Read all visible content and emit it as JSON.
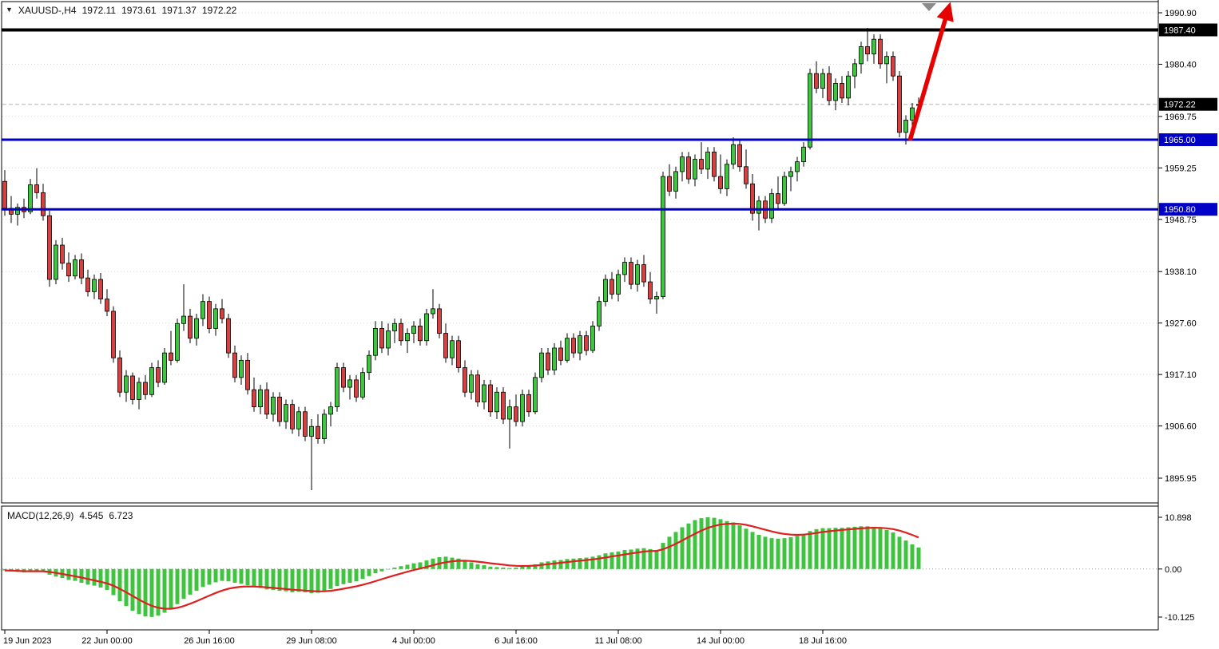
{
  "header": {
    "collapse_icon": "▼",
    "symbol_period": "XAUUSD-,H4",
    "open": "1972.11",
    "high": "1973.61",
    "low": "1971.37",
    "close": "1972.22"
  },
  "macd_panel": {
    "title": "MACD(12,26,9)",
    "value_main": "4.545",
    "value_signal": "6.723"
  },
  "price_axis": {
    "ticks": [
      {
        "label": "1990.90",
        "price": 1990.9
      },
      {
        "label": "1980.40",
        "price": 1980.4
      },
      {
        "label": "1969.75",
        "price": 1969.75
      },
      {
        "label": "1959.25",
        "price": 1959.25
      },
      {
        "label": "1948.75",
        "price": 1948.75
      },
      {
        "label": "1938.10",
        "price": 1938.1
      },
      {
        "label": "1927.60",
        "price": 1927.6
      },
      {
        "label": "1917.10",
        "price": 1917.1
      },
      {
        "label": "1906.60",
        "price": 1906.6
      },
      {
        "label": "1895.95",
        "price": 1895.95
      }
    ],
    "badges": [
      {
        "label": "1987.40",
        "price": 1987.4,
        "bg": "#000000"
      },
      {
        "label": "1972.22",
        "price": 1972.22,
        "bg": "#000000"
      },
      {
        "label": "1965.00",
        "price": 1965.0,
        "bg": "#0000C8"
      },
      {
        "label": "1950.80",
        "price": 1950.8,
        "bg": "#0000C8"
      }
    ]
  },
  "macd_axis": {
    "ticks": [
      {
        "label": "10.898",
        "value": 10.898
      },
      {
        "label": "0.00",
        "value": 0
      },
      {
        "label": "-10.125",
        "value": -10.125
      }
    ]
  },
  "time_axis": {
    "ticks": [
      {
        "label": "19 Jun 2023",
        "index": 0
      },
      {
        "label": "22 Jun 00:00",
        "index": 16
      },
      {
        "label": "26 Jun 16:00",
        "index": 32
      },
      {
        "label": "29 Jun 08:00",
        "index": 48
      },
      {
        "label": "4 Jul 00:00",
        "index": 64
      },
      {
        "label": "6 Jul 16:00",
        "index": 80
      },
      {
        "label": "11 Jul 08:00",
        "index": 96
      },
      {
        "label": "14 Jul 00:00",
        "index": 112
      },
      {
        "label": "18 Jul 16:00",
        "index": 128
      }
    ]
  },
  "colors": {
    "bull": "#3fc43f",
    "bear": "#d54040",
    "wick": "#000000",
    "grid": "#d8d8d8",
    "current_price_line": "#b5b5b5",
    "level_blue": "#0000C8",
    "level_black": "#000000",
    "histogram": "#3fc43f",
    "signal": "#e02020",
    "arrow": "#e60000",
    "shift_marker": "#8a8a8a"
  },
  "chart_data": {
    "type": "candlestick",
    "symbol": "XAUUSD-",
    "timeframe": "H4",
    "title": "XAUUSD- H4 with MACD(12,26,9), horizontal levels 1987.40 / 1965.00 / 1950.80 and bullish arrow annotation",
    "current_bar_ohlc": {
      "open": 1972.11,
      "high": 1973.61,
      "low": 1971.37,
      "close": 1972.22
    },
    "current_price": 1972.22,
    "price_axis_range": [
      1895.95,
      1990.9
    ],
    "levels": [
      {
        "name": "resistance-line-1987",
        "price": 1987.4,
        "color": "#000000",
        "width": 4
      },
      {
        "name": "support-line-1965",
        "price": 1965.0,
        "color": "#0000C8",
        "width": 3
      },
      {
        "name": "support-line-1950",
        "price": 1950.8,
        "color": "#0000C8",
        "width": 3
      }
    ],
    "candles": [
      [
        1956.5,
        1958.8,
        1949.5,
        1951.0
      ],
      [
        1951.0,
        1953.5,
        1948.0,
        1949.8
      ],
      [
        1949.8,
        1952.0,
        1947.5,
        1951.2
      ],
      [
        1951.2,
        1953.0,
        1949.0,
        1950.3
      ],
      [
        1950.3,
        1957.0,
        1949.8,
        1955.8
      ],
      [
        1955.8,
        1959.2,
        1953.0,
        1954.2
      ],
      [
        1954.2,
        1956.0,
        1948.5,
        1949.5
      ],
      [
        1949.5,
        1950.5,
        1935.0,
        1936.5
      ],
      [
        1936.5,
        1944.5,
        1935.5,
        1943.5
      ],
      [
        1943.5,
        1945.0,
        1938.5,
        1939.8
      ],
      [
        1939.8,
        1942.0,
        1936.0,
        1937.2
      ],
      [
        1937.2,
        1941.5,
        1936.5,
        1940.5
      ],
      [
        1940.5,
        1941.8,
        1935.5,
        1936.8
      ],
      [
        1936.8,
        1938.5,
        1933.0,
        1934.0
      ],
      [
        1934.0,
        1937.5,
        1932.5,
        1936.5
      ],
      [
        1936.5,
        1937.8,
        1931.5,
        1932.5
      ],
      [
        1932.5,
        1934.5,
        1929.0,
        1930.0
      ],
      [
        1930.0,
        1931.0,
        1919.5,
        1920.5
      ],
      [
        1920.5,
        1922.0,
        1912.5,
        1913.5
      ],
      [
        1913.5,
        1918.0,
        1911.5,
        1916.8
      ],
      [
        1916.8,
        1917.5,
        1911.0,
        1912.0
      ],
      [
        1912.0,
        1916.5,
        1910.0,
        1915.5
      ],
      [
        1915.5,
        1917.0,
        1912.0,
        1913.0
      ],
      [
        1913.0,
        1919.5,
        1912.5,
        1918.5
      ],
      [
        1918.5,
        1920.0,
        1914.5,
        1915.5
      ],
      [
        1915.5,
        1922.5,
        1915.0,
        1921.5
      ],
      [
        1921.5,
        1926.0,
        1919.0,
        1920.0
      ],
      [
        1920.0,
        1928.5,
        1919.5,
        1927.5
      ],
      [
        1927.5,
        1935.5,
        1926.0,
        1929.0
      ],
      [
        1929.0,
        1930.5,
        1923.5,
        1924.5
      ],
      [
        1924.5,
        1929.5,
        1923.0,
        1928.5
      ],
      [
        1928.5,
        1933.5,
        1927.0,
        1932.0
      ],
      [
        1932.0,
        1933.0,
        1925.5,
        1926.5
      ],
      [
        1926.5,
        1931.5,
        1925.0,
        1930.5
      ],
      [
        1930.5,
        1932.5,
        1927.5,
        1928.5
      ],
      [
        1928.5,
        1929.5,
        1920.5,
        1921.5
      ],
      [
        1921.5,
        1923.0,
        1915.5,
        1916.5
      ],
      [
        1916.5,
        1921.0,
        1915.0,
        1920.0
      ],
      [
        1920.0,
        1921.5,
        1913.0,
        1914.0
      ],
      [
        1914.0,
        1916.5,
        1909.5,
        1910.5
      ],
      [
        1910.5,
        1915.0,
        1909.0,
        1914.0
      ],
      [
        1914.0,
        1915.5,
        1908.0,
        1909.0
      ],
      [
        1909.0,
        1913.5,
        1907.5,
        1912.5
      ],
      [
        1912.5,
        1913.5,
        1906.5,
        1907.5
      ],
      [
        1907.5,
        1912.0,
        1906.0,
        1911.0
      ],
      [
        1911.0,
        1912.0,
        1905.0,
        1906.0
      ],
      [
        1906.0,
        1910.5,
        1904.5,
        1909.5
      ],
      [
        1909.5,
        1910.5,
        1903.5,
        1904.5
      ],
      [
        1904.5,
        1908.0,
        1893.5,
        1906.5
      ],
      [
        1906.5,
        1909.0,
        1903.0,
        1904.0
      ],
      [
        1904.0,
        1910.0,
        1903.0,
        1909.0
      ],
      [
        1909.0,
        1911.5,
        1906.5,
        1910.5
      ],
      [
        1910.5,
        1919.5,
        1909.5,
        1918.5
      ],
      [
        1918.5,
        1919.5,
        1913.5,
        1914.5
      ],
      [
        1914.5,
        1917.0,
        1912.0,
        1916.0
      ],
      [
        1916.0,
        1917.0,
        1911.5,
        1912.5
      ],
      [
        1912.5,
        1918.5,
        1912.0,
        1917.5
      ],
      [
        1917.5,
        1922.0,
        1916.0,
        1921.0
      ],
      [
        1921.0,
        1928.0,
        1920.0,
        1926.5
      ],
      [
        1926.5,
        1928.0,
        1921.5,
        1922.5
      ],
      [
        1922.5,
        1927.5,
        1921.0,
        1926.0
      ],
      [
        1926.0,
        1928.5,
        1923.5,
        1927.5
      ],
      [
        1927.5,
        1928.5,
        1923.0,
        1924.0
      ],
      [
        1924.0,
        1926.5,
        1921.5,
        1925.5
      ],
      [
        1925.5,
        1928.0,
        1923.5,
        1927.0
      ],
      [
        1927.0,
        1928.5,
        1923.0,
        1924.0
      ],
      [
        1924.0,
        1930.5,
        1923.0,
        1929.5
      ],
      [
        1929.5,
        1934.5,
        1928.5,
        1930.5
      ],
      [
        1930.5,
        1931.5,
        1924.5,
        1925.5
      ],
      [
        1925.5,
        1927.5,
        1919.5,
        1920.5
      ],
      [
        1920.5,
        1925.0,
        1919.0,
        1924.0
      ],
      [
        1924.0,
        1925.0,
        1917.5,
        1918.5
      ],
      [
        1918.5,
        1920.0,
        1912.5,
        1913.5
      ],
      [
        1913.5,
        1918.0,
        1912.0,
        1917.0
      ],
      [
        1917.0,
        1918.0,
        1910.5,
        1911.5
      ],
      [
        1911.5,
        1916.0,
        1910.0,
        1915.0
      ],
      [
        1915.0,
        1916.0,
        1908.5,
        1909.5
      ],
      [
        1909.5,
        1914.5,
        1908.0,
        1913.5
      ],
      [
        1913.5,
        1914.5,
        1907.0,
        1908.0
      ],
      [
        1908.0,
        1912.0,
        1902.0,
        1910.5
      ],
      [
        1910.5,
        1913.0,
        1906.5,
        1907.5
      ],
      [
        1907.5,
        1914.0,
        1906.5,
        1913.0
      ],
      [
        1913.0,
        1914.0,
        1908.5,
        1909.5
      ],
      [
        1909.5,
        1917.5,
        1909.0,
        1916.5
      ],
      [
        1916.5,
        1922.5,
        1915.5,
        1921.5
      ],
      [
        1921.5,
        1922.5,
        1917.0,
        1918.0
      ],
      [
        1918.0,
        1923.5,
        1917.0,
        1922.5
      ],
      [
        1922.5,
        1924.0,
        1919.0,
        1920.0
      ],
      [
        1920.0,
        1925.5,
        1919.5,
        1924.5
      ],
      [
        1924.5,
        1925.5,
        1920.5,
        1921.5
      ],
      [
        1921.5,
        1926.0,
        1920.0,
        1925.0
      ],
      [
        1925.0,
        1926.0,
        1921.0,
        1922.0
      ],
      [
        1922.0,
        1928.0,
        1921.5,
        1927.0
      ],
      [
        1927.0,
        1933.0,
        1926.0,
        1932.0
      ],
      [
        1932.0,
        1937.5,
        1931.0,
        1936.5
      ],
      [
        1936.5,
        1938.0,
        1932.5,
        1933.5
      ],
      [
        1933.5,
        1938.5,
        1932.0,
        1937.5
      ],
      [
        1937.5,
        1941.0,
        1936.0,
        1940.0
      ],
      [
        1940.0,
        1941.0,
        1934.5,
        1935.5
      ],
      [
        1935.5,
        1940.5,
        1934.0,
        1939.5
      ],
      [
        1939.5,
        1941.5,
        1935.0,
        1936.0
      ],
      [
        1936.0,
        1938.0,
        1931.5,
        1932.5
      ],
      [
        1932.5,
        1934.0,
        1929.5,
        1933.0
      ],
      [
        1933.0,
        1958.5,
        1932.5,
        1957.5
      ],
      [
        1957.5,
        1960.0,
        1953.5,
        1954.5
      ],
      [
        1954.5,
        1959.5,
        1953.0,
        1958.5
      ],
      [
        1958.5,
        1962.5,
        1956.5,
        1961.5
      ],
      [
        1961.5,
        1962.5,
        1956.0,
        1957.0
      ],
      [
        1957.0,
        1962.0,
        1955.5,
        1961.0
      ],
      [
        1961.0,
        1964.5,
        1958.0,
        1959.0
      ],
      [
        1959.0,
        1963.5,
        1957.0,
        1962.5
      ],
      [
        1962.5,
        1963.5,
        1956.5,
        1957.5
      ],
      [
        1957.5,
        1962.0,
        1954.0,
        1955.0
      ],
      [
        1955.0,
        1961.0,
        1953.5,
        1960.0
      ],
      [
        1960.0,
        1965.5,
        1959.0,
        1964.0
      ],
      [
        1964.0,
        1965.0,
        1958.5,
        1959.5
      ],
      [
        1959.5,
        1963.0,
        1955.0,
        1956.0
      ],
      [
        1956.0,
        1958.0,
        1948.5,
        1950.0
      ],
      [
        1950.0,
        1953.5,
        1946.5,
        1952.5
      ],
      [
        1952.5,
        1953.5,
        1948.0,
        1949.0
      ],
      [
        1949.0,
        1955.0,
        1948.0,
        1954.0
      ],
      [
        1954.0,
        1957.5,
        1951.0,
        1952.0
      ],
      [
        1952.0,
        1958.5,
        1951.5,
        1957.5
      ],
      [
        1957.5,
        1959.5,
        1954.5,
        1958.5
      ],
      [
        1958.5,
        1961.5,
        1956.5,
        1960.5
      ],
      [
        1960.5,
        1964.5,
        1959.5,
        1963.5
      ],
      [
        1963.5,
        1979.5,
        1963.0,
        1978.5
      ],
      [
        1978.5,
        1981.0,
        1974.5,
        1975.5
      ],
      [
        1975.5,
        1979.5,
        1973.5,
        1978.5
      ],
      [
        1978.5,
        1980.0,
        1972.0,
        1973.0
      ],
      [
        1973.0,
        1977.5,
        1971.0,
        1976.5
      ],
      [
        1976.5,
        1978.0,
        1972.5,
        1973.5
      ],
      [
        1973.5,
        1979.0,
        1972.0,
        1978.0
      ],
      [
        1978.0,
        1981.5,
        1975.5,
        1980.5
      ],
      [
        1980.5,
        1985.0,
        1978.5,
        1984.0
      ],
      [
        1984.0,
        1987.8,
        1981.0,
        1982.5
      ],
      [
        1982.5,
        1986.5,
        1980.5,
        1985.5
      ],
      [
        1985.5,
        1986.5,
        1979.5,
        1980.5
      ],
      [
        1980.5,
        1983.0,
        1976.5,
        1982.0
      ],
      [
        1982.0,
        1983.0,
        1977.0,
        1978.0
      ],
      [
        1978.0,
        1979.0,
        1965.5,
        1966.5
      ],
      [
        1966.5,
        1970.0,
        1964.0,
        1969.0
      ],
      [
        1969.0,
        1972.5,
        1967.0,
        1971.5
      ],
      [
        1972.11,
        1973.61,
        1971.37,
        1972.22
      ]
    ],
    "indicator": {
      "name": "MACD",
      "params": "12,26,9",
      "main_value": 4.545,
      "signal_value": 6.723,
      "axis_range": [
        -10.125,
        10.898
      ],
      "histogram": [
        -0.3,
        -0.5,
        -0.6,
        -0.7,
        -0.5,
        -0.4,
        -0.6,
        -1.2,
        -1.6,
        -1.9,
        -2.3,
        -2.5,
        -2.9,
        -3.3,
        -3.5,
        -3.9,
        -4.4,
        -5.5,
        -6.8,
        -7.8,
        -8.8,
        -9.5,
        -10.0,
        -10.1,
        -9.8,
        -9.2,
        -8.4,
        -7.4,
        -6.3,
        -5.4,
        -4.6,
        -3.8,
        -3.3,
        -2.8,
        -2.5,
        -2.6,
        -2.9,
        -3.1,
        -3.4,
        -3.8,
        -4.0,
        -4.3,
        -4.4,
        -4.6,
        -4.7,
        -4.9,
        -4.8,
        -4.9,
        -5.1,
        -5.0,
        -4.6,
        -4.2,
        -3.6,
        -3.2,
        -2.9,
        -2.6,
        -2.1,
        -1.5,
        -0.9,
        -0.5,
        -0.1,
        0.3,
        0.6,
        0.9,
        1.2,
        1.4,
        1.8,
        2.2,
        2.5,
        2.6,
        2.4,
        2.2,
        1.8,
        1.4,
        1.0,
        0.8,
        0.5,
        0.4,
        0.3,
        0.2,
        0.3,
        0.5,
        0.7,
        1.0,
        1.4,
        1.6,
        1.8,
        1.9,
        2.1,
        2.2,
        2.3,
        2.4,
        2.6,
        2.9,
        3.3,
        3.5,
        3.7,
        4.0,
        4.1,
        4.3,
        4.4,
        4.2,
        4.0,
        5.5,
        6.8,
        7.8,
        8.8,
        9.6,
        10.3,
        10.7,
        10.9,
        10.8,
        10.5,
        10.1,
        9.8,
        9.2,
        8.5,
        7.8,
        7.2,
        6.8,
        6.5,
        6.4,
        6.5,
        6.7,
        7.0,
        7.4,
        8.0,
        8.4,
        8.6,
        8.6,
        8.7,
        8.7,
        8.8,
        8.9,
        9.0,
        9.0,
        8.9,
        8.6,
        8.2,
        7.7,
        6.8,
        6.0,
        5.2,
        4.545
      ]
    },
    "annotation_arrow": {
      "direction": "up",
      "color": "#e60000"
    }
  }
}
